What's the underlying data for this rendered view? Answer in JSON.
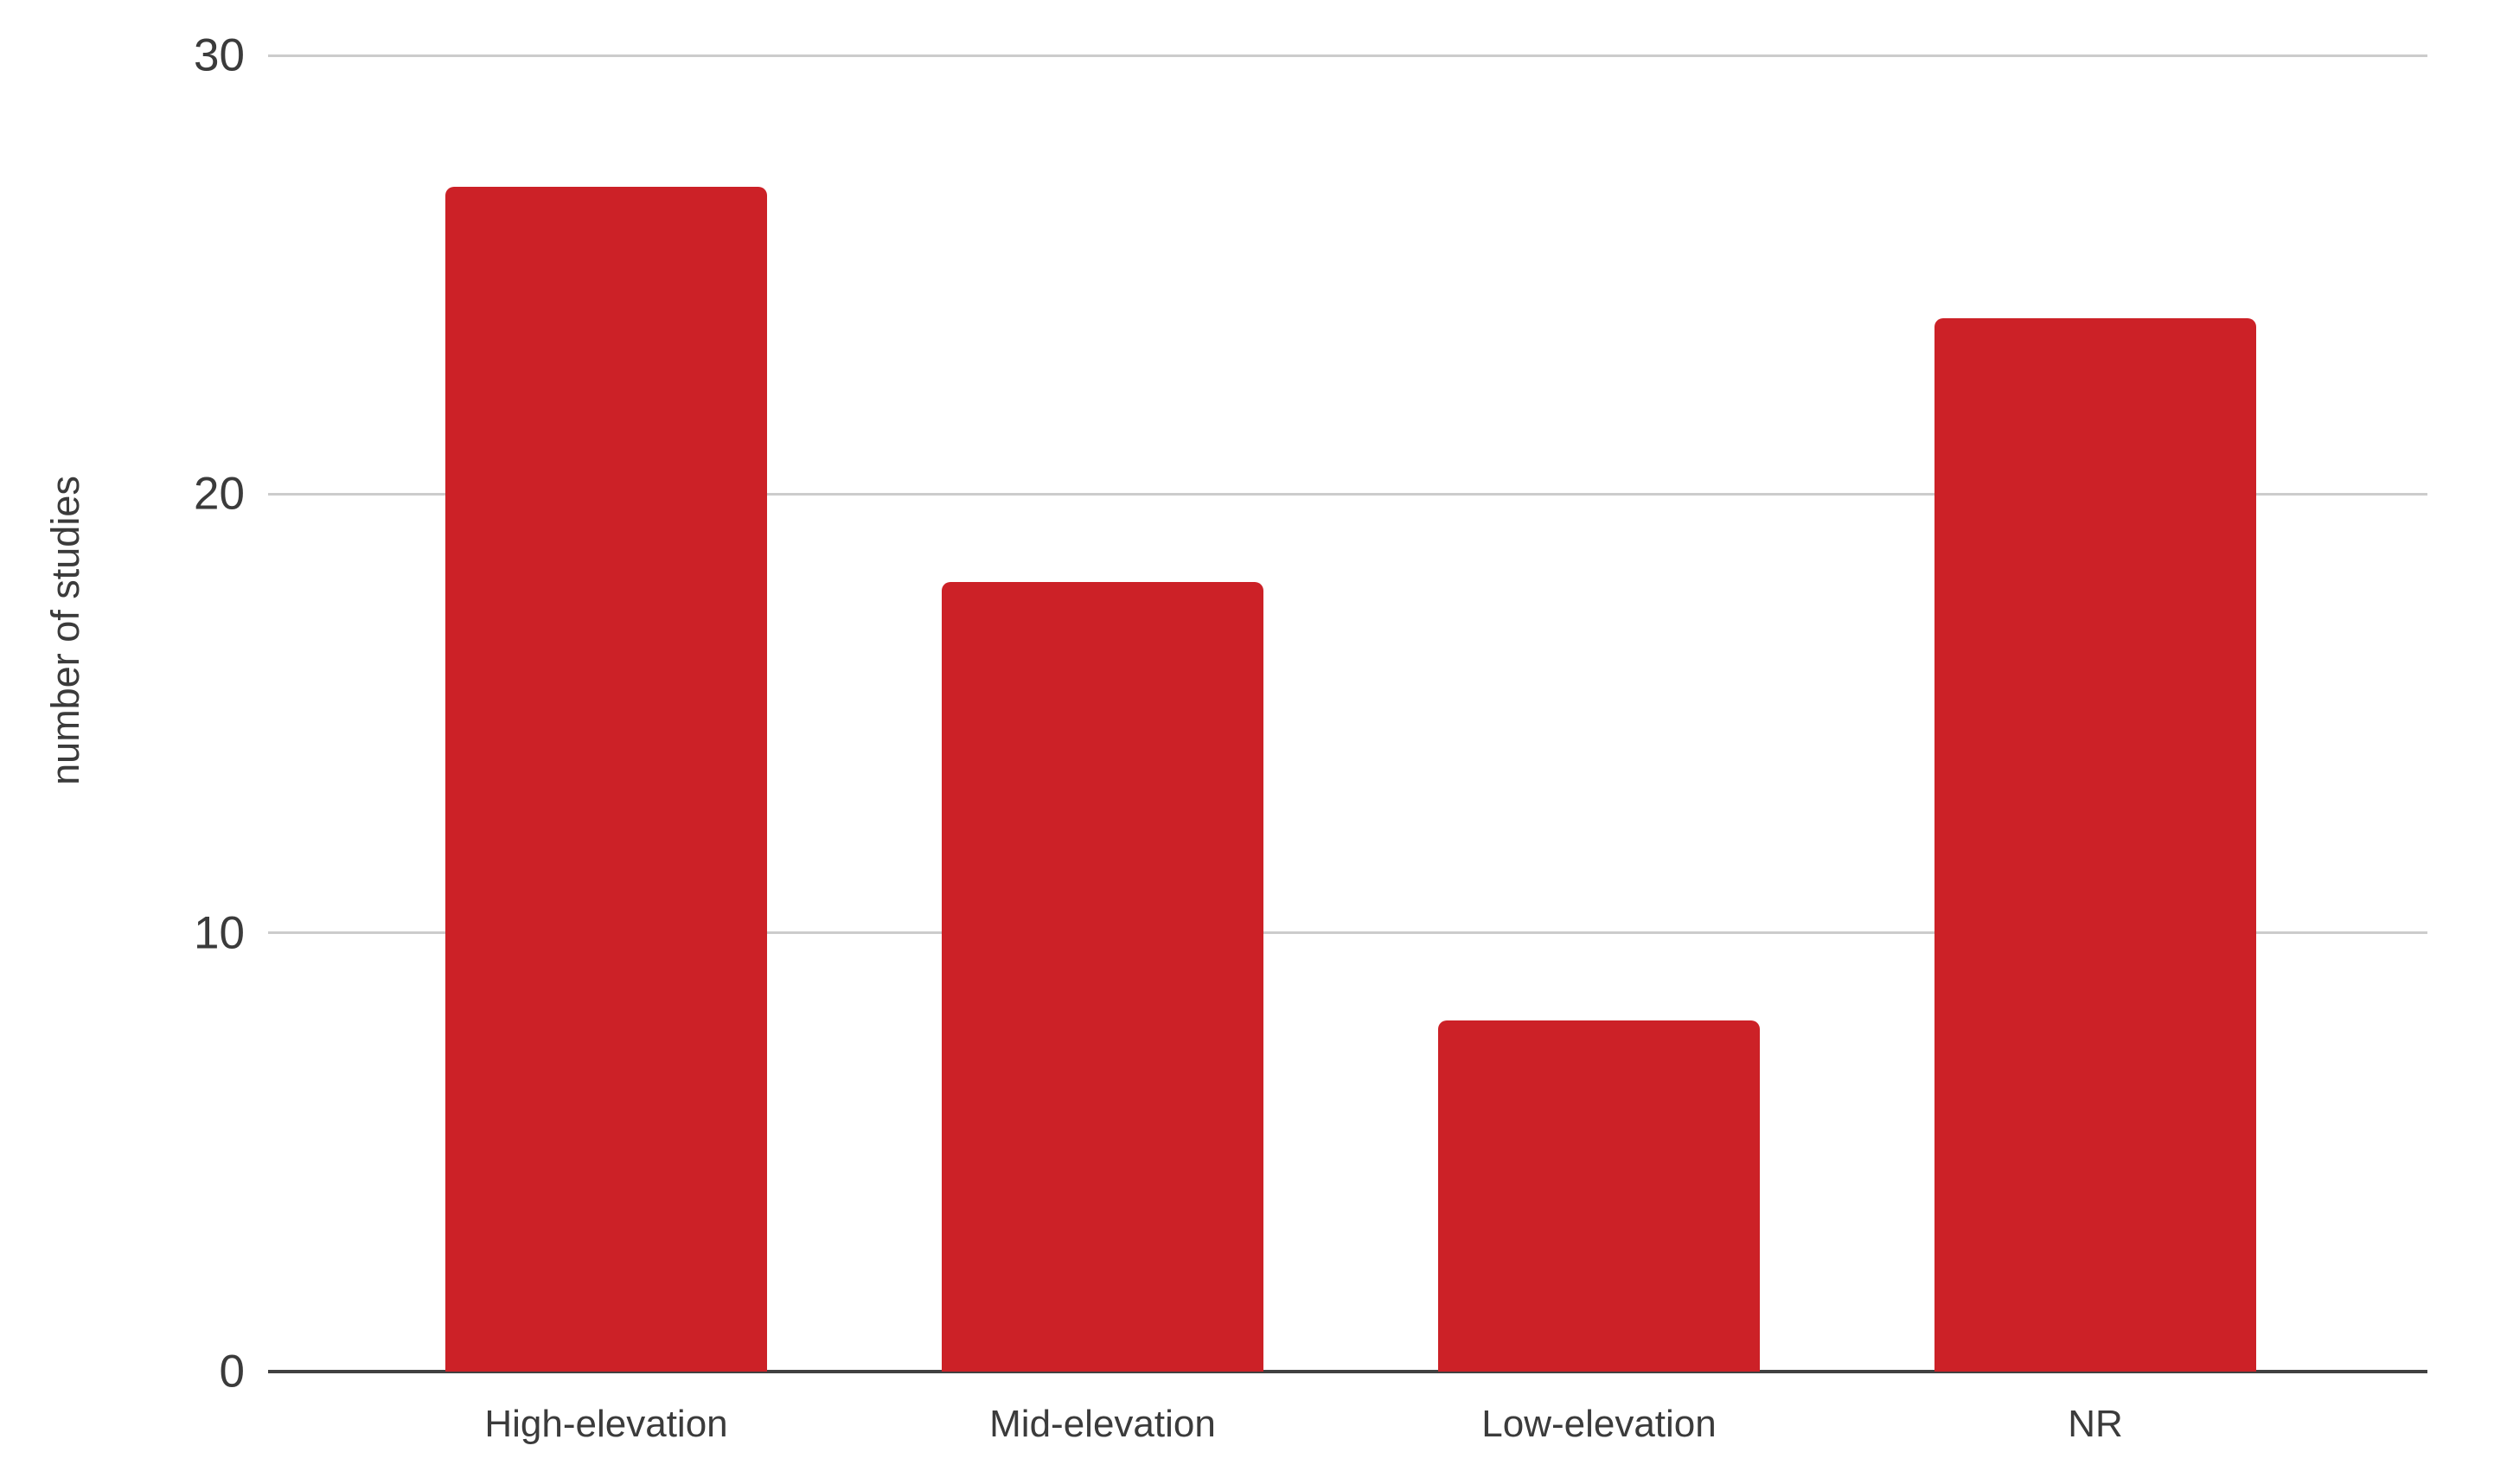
{
  "chart_data": {
    "type": "bar",
    "categories": [
      "High-elevation",
      "Mid-elevation",
      "Low-elevation",
      "NR"
    ],
    "values": [
      27,
      18,
      8,
      24
    ],
    "title": "",
    "xlabel": "",
    "ylabel": "number of studies",
    "ylim": [
      0,
      30
    ],
    "yticks": [
      0,
      10,
      20,
      30
    ],
    "grid": true,
    "legend_position": "none",
    "bar_color": "#cc2127",
    "gridline_color": "#cccccc",
    "baseline_color": "#414141",
    "text_color": "#3b3b3b",
    "background_color": "#ffffff"
  }
}
